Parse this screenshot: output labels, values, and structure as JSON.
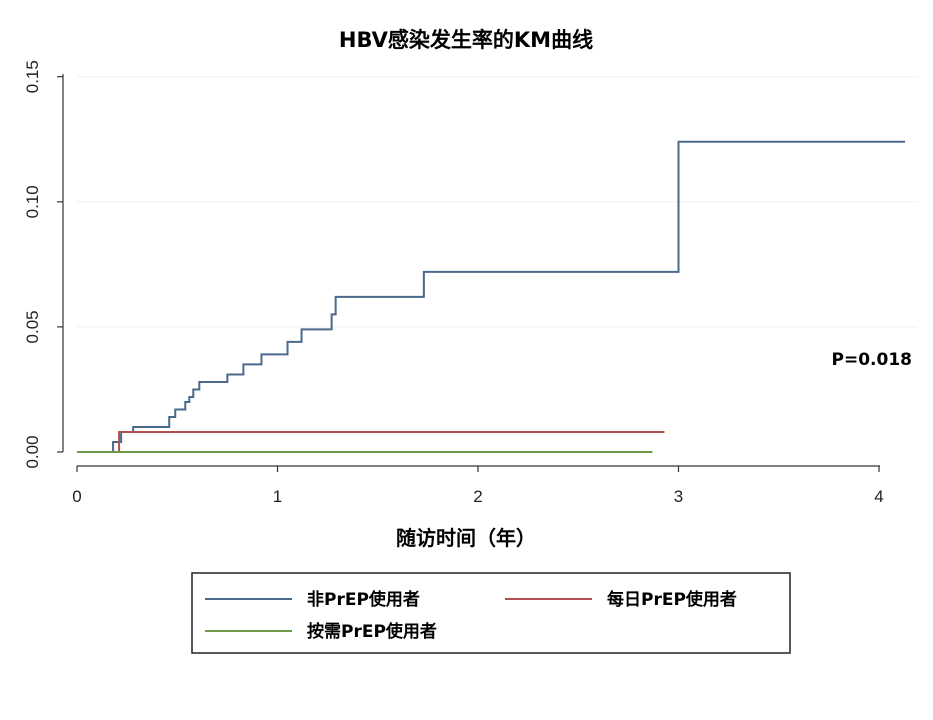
{
  "chart_data": {
    "type": "line",
    "step": true,
    "title": "HBV感染发生率的KM曲线",
    "xlabel": "随访时间（年）",
    "ylabel": "",
    "xlim": [
      0,
      4.2
    ],
    "ylim": [
      0,
      0.15
    ],
    "x_ticks": [
      0,
      1,
      2,
      3,
      4
    ],
    "x_tick_labels": [
      "0",
      "1",
      "2",
      "3",
      "4"
    ],
    "y_ticks": [
      0,
      0.05,
      0.1,
      0.15
    ],
    "y_tick_labels": [
      "0.00",
      "0.05",
      "0.10",
      "0.15"
    ],
    "grid": true,
    "legend_position": "bottom",
    "annotation": "P=0.018",
    "series": [
      {
        "name": "非PrEP使用者",
        "color": "#4a6a8c",
        "x": [
          0.16,
          0.18,
          0.22,
          0.28,
          0.46,
          0.49,
          0.54,
          0.56,
          0.58,
          0.61,
          0.75,
          0.83,
          0.92,
          1.05,
          1.12,
          1.27,
          1.29,
          1.73,
          3.0,
          4.13
        ],
        "y": [
          0.0,
          0.004,
          0.008,
          0.01,
          0.014,
          0.017,
          0.02,
          0.022,
          0.025,
          0.028,
          0.031,
          0.035,
          0.039,
          0.044,
          0.049,
          0.055,
          0.062,
          0.072,
          0.124,
          0.124
        ]
      },
      {
        "name": "每日PrEP使用者",
        "color": "#b0504e",
        "x": [
          0.0,
          0.21,
          2.93
        ],
        "y": [
          0.0,
          0.008,
          0.008
        ]
      },
      {
        "name": "按需PrEP使用者",
        "color": "#6a9a4a",
        "x": [
          0.0,
          2.87
        ],
        "y": [
          0.0,
          0.0
        ]
      }
    ]
  }
}
